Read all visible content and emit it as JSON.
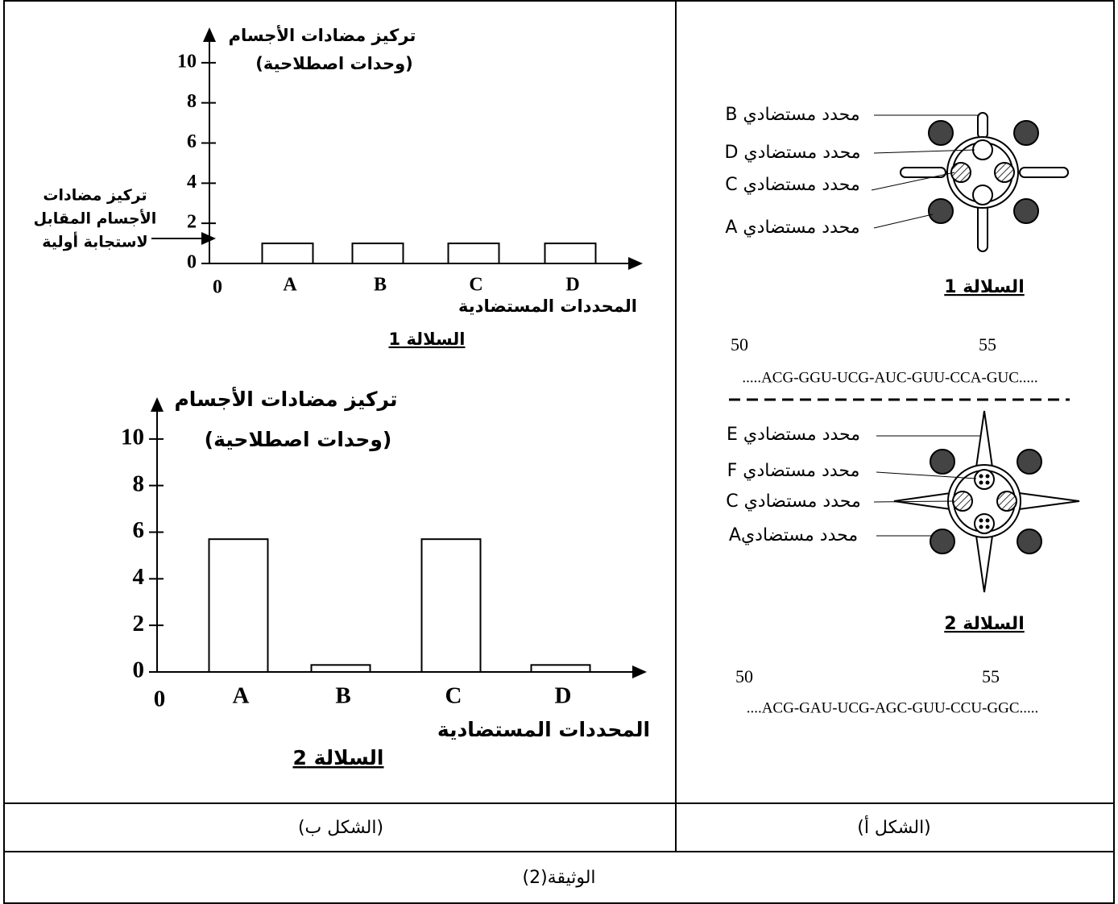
{
  "chart_data": [
    {
      "type": "bar",
      "ylabel": [
        "تركيز مضادات الأجسام",
        "(وحدات اصطلاحية)"
      ],
      "xlabel": "المحددات المستضادية",
      "caption": "السلالة 1",
      "origin_label": "0",
      "annotation": [
        "تركيز مضادات",
        "الأجسام المقابل",
        "لاستجابة أولية"
      ],
      "categories": [
        "A",
        "B",
        "C",
        "D"
      ],
      "values": [
        1,
        1,
        1,
        1
      ],
      "color": "#ffffff",
      "ylim": [
        0,
        12
      ],
      "yticks": [
        0,
        2,
        4,
        6,
        8,
        10
      ]
    },
    {
      "type": "bar",
      "ylabel": [
        "تركيز مضادات الأجسام",
        "(وحدات اصطلاحية)"
      ],
      "xlabel": "المحددات المستضادية",
      "caption": "السلالة 2",
      "origin_label": "0",
      "categories": [
        "A",
        "B",
        "C",
        "D"
      ],
      "values": [
        5.7,
        0.3,
        5.7,
        0.3
      ],
      "color": "#ffffff",
      "ylim": [
        0,
        12
      ],
      "yticks": [
        0,
        2,
        4,
        6,
        8,
        10
      ]
    }
  ],
  "figure_a": {
    "strain_1": {
      "labels": [
        "محدد مستضادي B",
        "محدد مستضادي D",
        "محدد مستضادي C",
        "محدد مستضادي A"
      ],
      "caption": "السلالة 1",
      "positions": [
        50,
        55
      ],
      "sequence": ".....ACG-GGU-UCG-AUC-GUU-CCA-GUC....."
    },
    "strain_2": {
      "labels": [
        "محدد مستضادي E",
        "محدد مستضادي F",
        "محدد مستضادي C",
        "محدد مستضاديA"
      ],
      "caption": "السلالة 2",
      "positions": [
        50,
        55
      ],
      "sequence": "....ACG-GAU-UCG-AGC-GUU-CCU-GGC....."
    }
  },
  "captions": {
    "figure_b": "(الشكل ب)",
    "figure_a": "(الشكل أ)"
  },
  "document_label": "الوثيقة(2)"
}
